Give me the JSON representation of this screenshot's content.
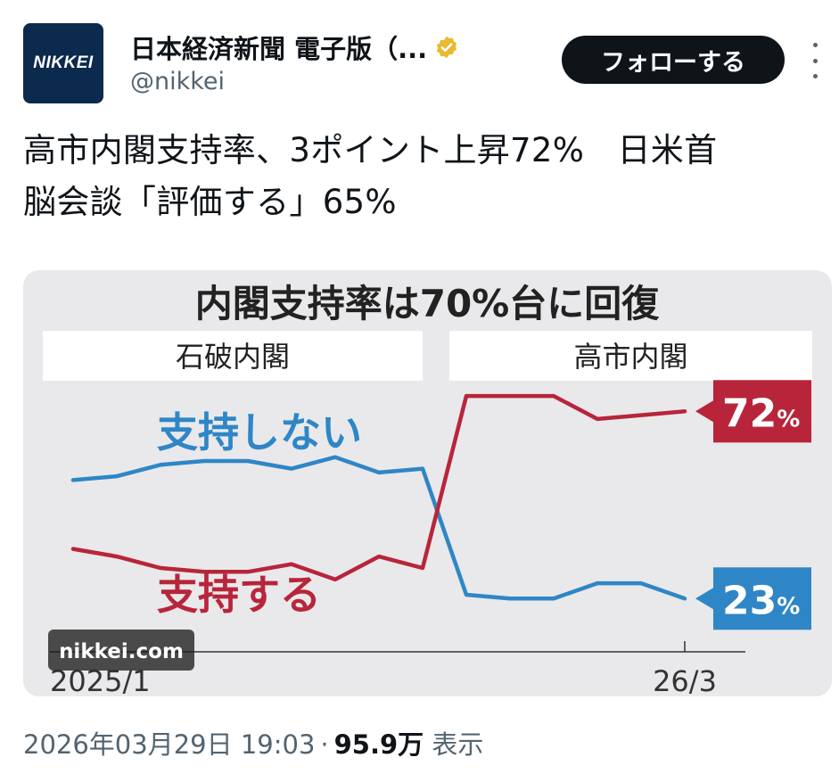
{
  "tweet": {
    "display_name": "日本経済新聞 電子版（...",
    "handle": "@nikkei",
    "avatar_text": "NIKKEI",
    "follow_label": "フォローする",
    "text_line1": "高市内閣支持率、3ポイント上昇72%　日米首",
    "text_line2": "脳会談「評価する」65%",
    "timestamp": "2026年03月29日 19:03",
    "separator": "·",
    "views_count": "95.9万",
    "views_label": "表示"
  },
  "chart_data": {
    "type": "line",
    "title": "内閣支持率は70%台に回復",
    "watermark": "nikkei.com",
    "periods": [
      {
        "label": "石破内閣"
      },
      {
        "label": "高市内閣"
      }
    ],
    "x_start_label": "2025/1",
    "x_end_label": "26/3",
    "ylim": [
      10,
      80
    ],
    "series": [
      {
        "name": "支持しない",
        "color": "#2f86c6",
        "end_label": "23",
        "values": [
          54,
          55,
          58,
          59,
          59,
          57,
          60,
          56,
          57,
          24,
          23,
          23,
          27,
          27,
          23
        ]
      },
      {
        "name": "支持する",
        "color": "#b8253a",
        "end_label": "72",
        "values": [
          36,
          34,
          31,
          30,
          30,
          32,
          28,
          34,
          31,
          76,
          76,
          76,
          70,
          71,
          72
        ]
      }
    ],
    "unit": "%"
  },
  "colors": {
    "support": "#b8253a",
    "not_support": "#2f86c6",
    "figure_bg": "#e9e9eb",
    "period_band": "#ffffff",
    "verified": "#e9b92e"
  }
}
